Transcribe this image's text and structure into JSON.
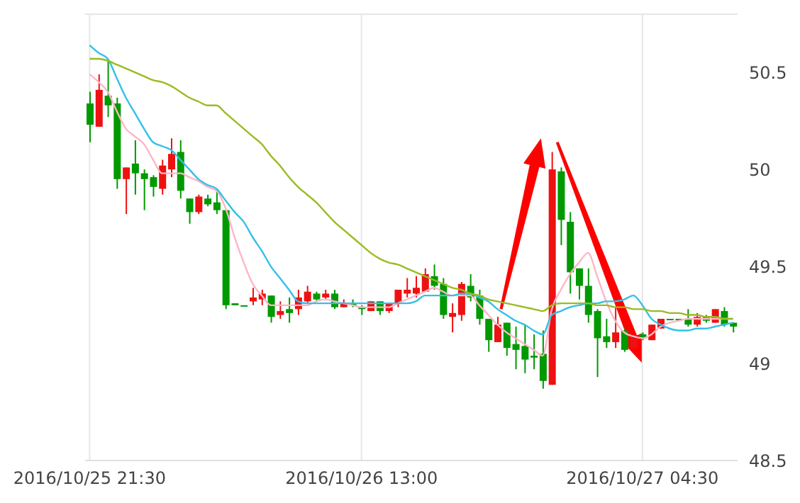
{
  "chart_data": {
    "type": "candlestick",
    "categories": [
      "2016/10/25 21:30",
      null,
      null,
      null,
      null,
      null,
      null,
      null,
      null,
      null,
      null,
      null,
      null,
      null,
      null,
      null,
      null,
      null,
      null,
      null,
      null,
      null,
      null,
      null,
      null,
      null,
      null,
      null,
      null,
      null,
      "2016/10/26 13:00",
      null,
      null,
      null,
      null,
      null,
      null,
      null,
      null,
      null,
      null,
      null,
      null,
      null,
      null,
      null,
      null,
      null,
      null,
      null,
      null,
      null,
      null,
      null,
      null,
      null,
      null,
      null,
      null,
      null,
      null,
      "2016/10/27 04:30",
      null,
      null,
      null,
      null,
      null,
      null,
      null,
      null,
      null,
      null
    ],
    "ohlc": [
      [
        50.34,
        50.4,
        50.14,
        50.23
      ],
      [
        50.22,
        50.49,
        50.22,
        50.41
      ],
      [
        50.38,
        50.56,
        50.27,
        50.33
      ],
      [
        50.34,
        50.37,
        49.9,
        49.95
      ],
      [
        49.95,
        50.01,
        49.77,
        50.01
      ],
      [
        50.03,
        50.15,
        49.87,
        49.98
      ],
      [
        49.98,
        50.0,
        49.79,
        49.95
      ],
      [
        49.96,
        49.97,
        49.86,
        49.91
      ],
      [
        49.9,
        50.05,
        49.87,
        50.02
      ],
      [
        50.0,
        50.16,
        49.96,
        50.08
      ],
      [
        50.09,
        50.15,
        49.85,
        49.89
      ],
      [
        49.85,
        49.85,
        49.72,
        49.78
      ],
      [
        49.78,
        49.87,
        49.77,
        49.86
      ],
      [
        49.85,
        49.87,
        49.81,
        49.82
      ],
      [
        49.83,
        49.9,
        49.77,
        49.79
      ],
      [
        49.79,
        49.79,
        49.28,
        49.3
      ],
      [
        49.31,
        49.31,
        49.3,
        49.3
      ],
      [
        49.3,
        49.3,
        49.3,
        49.3
      ],
      [
        49.32,
        49.39,
        49.3,
        49.34
      ],
      [
        49.33,
        49.38,
        49.3,
        49.36
      ],
      [
        49.35,
        49.35,
        49.21,
        49.24
      ],
      [
        49.25,
        49.32,
        49.23,
        49.27
      ],
      [
        49.28,
        49.34,
        49.21,
        49.26
      ],
      [
        49.28,
        49.38,
        49.25,
        49.34
      ],
      [
        49.32,
        49.4,
        49.31,
        49.37
      ],
      [
        49.36,
        49.37,
        49.32,
        49.33
      ],
      [
        49.34,
        49.38,
        49.33,
        49.36
      ],
      [
        49.36,
        49.38,
        49.28,
        49.29
      ],
      [
        49.29,
        49.33,
        49.29,
        49.31
      ],
      [
        49.31,
        49.33,
        49.29,
        49.3
      ],
      [
        49.29,
        49.3,
        49.25,
        49.28
      ],
      [
        49.27,
        49.32,
        49.27,
        49.32
      ],
      [
        49.32,
        49.32,
        49.25,
        49.27
      ],
      [
        49.27,
        49.31,
        49.26,
        49.31
      ],
      [
        49.31,
        49.38,
        49.29,
        49.38
      ],
      [
        49.36,
        49.44,
        49.34,
        49.38
      ],
      [
        49.36,
        49.45,
        49.34,
        49.39
      ],
      [
        49.37,
        49.49,
        49.37,
        49.46
      ],
      [
        49.45,
        49.51,
        49.38,
        49.4
      ],
      [
        49.41,
        49.44,
        49.23,
        49.25
      ],
      [
        49.24,
        49.31,
        49.16,
        49.26
      ],
      [
        49.25,
        49.42,
        49.22,
        49.41
      ],
      [
        49.4,
        49.46,
        49.32,
        49.34
      ],
      [
        49.35,
        49.38,
        49.2,
        49.23
      ],
      [
        49.23,
        49.23,
        49.06,
        49.12
      ],
      [
        49.11,
        49.24,
        49.11,
        49.2
      ],
      [
        49.21,
        49.21,
        49.04,
        49.08
      ],
      [
        49.1,
        49.19,
        48.97,
        49.07
      ],
      [
        49.09,
        49.2,
        48.95,
        49.02
      ],
      [
        49.04,
        49.15,
        48.97,
        49.03
      ],
      [
        49.05,
        49.17,
        48.87,
        48.91
      ],
      [
        48.89,
        50.09,
        48.89,
        50.0
      ],
      [
        49.99,
        50.01,
        49.61,
        49.74
      ],
      [
        49.73,
        49.78,
        49.36,
        49.47
      ],
      [
        49.49,
        49.49,
        49.33,
        49.4
      ],
      [
        49.4,
        49.49,
        49.21,
        49.25
      ],
      [
        49.27,
        49.28,
        48.93,
        49.13
      ],
      [
        49.14,
        49.23,
        49.08,
        49.11
      ],
      [
        49.11,
        49.29,
        49.08,
        49.16
      ],
      [
        49.17,
        49.18,
        49.06,
        49.07
      ],
      [
        49.08,
        49.15,
        49.07,
        49.14
      ],
      [
        49.15,
        49.16,
        49.12,
        49.13
      ],
      [
        49.12,
        49.2,
        49.12,
        49.2
      ],
      [
        49.18,
        49.23,
        49.18,
        49.23
      ],
      [
        49.23,
        49.23,
        49.23,
        49.23
      ],
      [
        49.23,
        49.23,
        49.23,
        49.23
      ],
      [
        49.23,
        49.28,
        49.19,
        49.2
      ],
      [
        49.2,
        49.26,
        49.19,
        49.24
      ],
      [
        49.24,
        49.25,
        49.21,
        49.22
      ],
      [
        49.21,
        49.28,
        49.21,
        49.28
      ],
      [
        49.27,
        49.29,
        49.19,
        49.2
      ],
      [
        49.21,
        49.21,
        49.16,
        49.19
      ]
    ],
    "colors": [
      "#009900",
      "#ee1111",
      "#009900",
      "#009900",
      "#ee1111",
      "#009900",
      "#009900",
      "#009900",
      "#ee1111",
      "#ee1111",
      "#009900",
      "#009900",
      "#ee1111",
      "#009900",
      "#009900",
      "#009900",
      "#009900",
      "#009900",
      "#ee1111",
      "#ee1111",
      "#009900",
      "#ee1111",
      "#009900",
      "#ee1111",
      "#ee1111",
      "#009900",
      "#ee1111",
      "#009900",
      "#ee1111",
      "#009900",
      "#009900",
      "#ee1111",
      "#009900",
      "#ee1111",
      "#ee1111",
      "#ee1111",
      "#ee1111",
      "#ee1111",
      "#009900",
      "#009900",
      "#ee1111",
      "#ee1111",
      "#009900",
      "#009900",
      "#009900",
      "#ee1111",
      "#009900",
      "#009900",
      "#009900",
      "#009900",
      "#009900",
      "#ee1111",
      "#009900",
      "#009900",
      "#009900",
      "#009900",
      "#009900",
      "#009900",
      "#ee1111",
      "#009900",
      "#ee1111",
      "#009900",
      "#ee1111",
      "#ee1111",
      "#009900",
      "#009900",
      "#009900",
      "#ee1111",
      "#009900",
      "#ee1111",
      "#009900",
      "#009900"
    ],
    "series": [
      {
        "type": "line",
        "color": "#ffb6c6",
        "values": [
          50.49,
          50.45,
          50.4,
          50.3,
          50.21,
          50.17,
          50.13,
          50.05,
          49.98,
          49.98,
          49.98,
          49.96,
          49.94,
          49.91,
          49.89,
          49.8,
          49.65,
          49.52,
          49.41,
          49.35,
          49.3,
          49.3,
          49.3,
          49.3,
          49.3,
          49.32,
          49.33,
          49.32,
          49.31,
          49.3,
          49.29,
          49.29,
          49.29,
          49.29,
          49.31,
          49.33,
          49.35,
          49.37,
          49.39,
          49.37,
          49.35,
          49.35,
          49.35,
          49.3,
          49.25,
          49.2,
          49.16,
          49.13,
          49.1,
          49.07,
          49.04,
          49.28,
          49.38,
          49.46,
          49.52,
          49.57,
          49.45,
          49.32,
          49.22,
          49.16,
          49.14,
          49.13,
          49.15,
          49.19,
          49.21,
          49.22,
          49.23,
          49.23,
          49.23,
          49.23,
          49.23,
          49.23
        ]
      },
      {
        "type": "line",
        "color": "#33c0e6",
        "values": [
          50.64,
          50.6,
          50.57,
          50.47,
          50.37,
          50.29,
          50.21,
          50.14,
          50.12,
          50.1,
          50.05,
          50.0,
          49.95,
          49.92,
          49.9,
          49.84,
          49.78,
          49.73,
          49.65,
          49.58,
          49.5,
          49.44,
          49.38,
          49.32,
          49.31,
          49.31,
          49.31,
          49.31,
          49.31,
          49.31,
          49.31,
          49.31,
          49.31,
          49.31,
          49.31,
          49.31,
          49.32,
          49.35,
          49.35,
          49.35,
          49.35,
          49.36,
          49.36,
          49.34,
          49.32,
          49.28,
          49.25,
          49.22,
          49.2,
          49.17,
          49.15,
          49.25,
          49.27,
          49.29,
          49.3,
          49.31,
          49.31,
          49.32,
          49.32,
          49.33,
          49.35,
          49.3,
          49.23,
          49.2,
          49.18,
          49.17,
          49.17,
          49.18,
          49.18,
          49.19,
          49.2,
          49.21
        ]
      },
      {
        "type": "line",
        "color": "#99bb22",
        "values": [
          50.57,
          50.57,
          50.56,
          50.54,
          50.52,
          50.5,
          50.48,
          50.46,
          50.45,
          50.43,
          50.4,
          50.37,
          50.35,
          50.33,
          50.33,
          50.29,
          50.25,
          50.21,
          50.17,
          50.13,
          50.07,
          50.02,
          49.96,
          49.91,
          49.87,
          49.83,
          49.78,
          49.73,
          49.69,
          49.65,
          49.61,
          49.57,
          49.54,
          49.52,
          49.51,
          49.49,
          49.47,
          49.45,
          49.43,
          49.41,
          49.39,
          49.38,
          49.36,
          49.35,
          49.33,
          49.32,
          49.31,
          49.3,
          49.29,
          49.28,
          49.27,
          49.3,
          49.31,
          49.31,
          49.31,
          49.31,
          49.3,
          49.3,
          49.29,
          49.29,
          49.28,
          49.28,
          49.27,
          49.27,
          49.26,
          49.26,
          49.25,
          49.25,
          49.24,
          49.24,
          49.23,
          49.23
        ]
      }
    ],
    "ylim": [
      48.5,
      50.8
    ],
    "yticks": [
      48.5,
      49,
      49.5,
      50,
      50.5
    ],
    "grid": true,
    "marker": "none"
  }
}
